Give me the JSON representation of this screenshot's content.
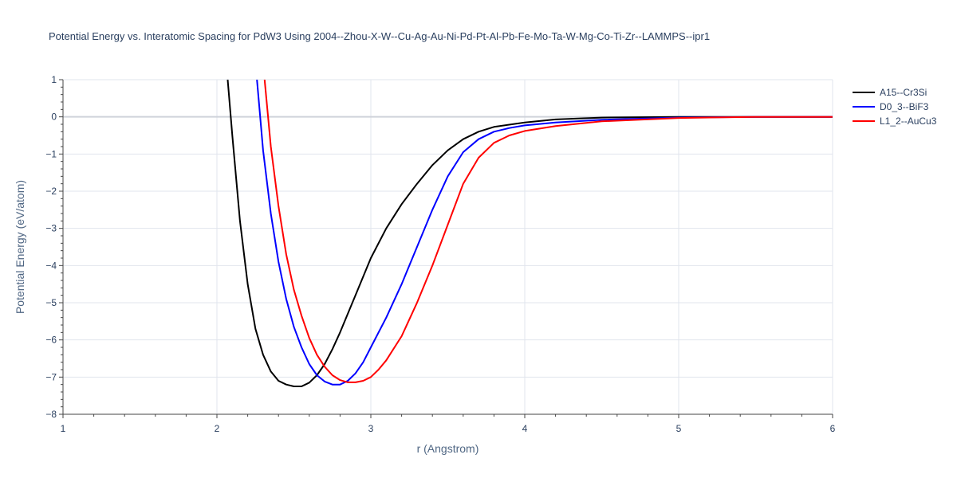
{
  "chart_data": {
    "type": "line",
    "title": "Potential Energy vs. Interatomic Spacing for PdW3 Using 2004--Zhou-X-W--Cu-Ag-Au-Ni-Pd-Pt-Al-Pb-Fe-Mo-Ta-W-Mg-Co-Ti-Zr--LAMMPS--ipr1",
    "xlabel": "r (Angstrom)",
    "ylabel": "Potential Energy (eV/atom)",
    "xlim": [
      1,
      6
    ],
    "ylim": [
      -8,
      1
    ],
    "xticks": [
      1,
      2,
      3,
      4,
      5,
      6
    ],
    "yticks": [
      1,
      0,
      -1,
      -2,
      -3,
      -4,
      -5,
      -6,
      -7,
      -8
    ],
    "xtick_labels": [
      "1",
      "2",
      "3",
      "4",
      "5",
      "6"
    ],
    "ytick_labels": [
      "1",
      "0",
      "−1",
      "−2",
      "−3",
      "−4",
      "−5",
      "−6",
      "−7",
      "−8"
    ],
    "grid": true,
    "legend_position": "top-right",
    "series": [
      {
        "name": "A15--Cr3Si",
        "color": "#000000",
        "x": [
          2.07,
          2.1,
          2.15,
          2.2,
          2.25,
          2.3,
          2.35,
          2.4,
          2.45,
          2.5,
          2.55,
          2.6,
          2.65,
          2.7,
          2.75,
          2.8,
          2.9,
          3.0,
          3.1,
          3.2,
          3.3,
          3.4,
          3.5,
          3.6,
          3.7,
          3.8,
          4.0,
          4.2,
          4.5,
          5.0,
          5.5,
          6.0
        ],
        "y": [
          1.0,
          -0.5,
          -2.8,
          -4.5,
          -5.7,
          -6.4,
          -6.85,
          -7.1,
          -7.2,
          -7.25,
          -7.25,
          -7.15,
          -6.95,
          -6.65,
          -6.25,
          -5.8,
          -4.8,
          -3.8,
          -3.0,
          -2.35,
          -1.8,
          -1.3,
          -0.9,
          -0.6,
          -0.4,
          -0.27,
          -0.15,
          -0.07,
          -0.02,
          0.0,
          0.0,
          0.0
        ]
      },
      {
        "name": "D0_3--BiF3",
        "color": "#0000ff",
        "x": [
          2.26,
          2.3,
          2.35,
          2.4,
          2.45,
          2.5,
          2.55,
          2.6,
          2.65,
          2.7,
          2.75,
          2.8,
          2.85,
          2.9,
          2.95,
          3.0,
          3.1,
          3.2,
          3.3,
          3.4,
          3.5,
          3.6,
          3.7,
          3.8,
          3.9,
          4.0,
          4.2,
          4.5,
          5.0,
          5.5,
          6.0
        ],
        "y": [
          1.0,
          -0.9,
          -2.6,
          -3.9,
          -4.9,
          -5.65,
          -6.2,
          -6.65,
          -6.95,
          -7.12,
          -7.2,
          -7.2,
          -7.1,
          -6.9,
          -6.6,
          -6.2,
          -5.4,
          -4.5,
          -3.5,
          -2.5,
          -1.6,
          -0.95,
          -0.6,
          -0.4,
          -0.3,
          -0.23,
          -0.15,
          -0.08,
          -0.02,
          0.0,
          0.0
        ]
      },
      {
        "name": "L1_2--AuCu3",
        "color": "#ff0000",
        "x": [
          2.31,
          2.35,
          2.4,
          2.45,
          2.5,
          2.55,
          2.6,
          2.65,
          2.7,
          2.75,
          2.8,
          2.85,
          2.9,
          2.95,
          3.0,
          3.05,
          3.1,
          3.2,
          3.3,
          3.4,
          3.5,
          3.6,
          3.7,
          3.8,
          3.9,
          4.0,
          4.2,
          4.5,
          5.0,
          5.5,
          6.0
        ],
        "y": [
          1.0,
          -0.8,
          -2.4,
          -3.7,
          -4.65,
          -5.35,
          -5.95,
          -6.4,
          -6.72,
          -6.95,
          -7.08,
          -7.14,
          -7.14,
          -7.1,
          -7.0,
          -6.8,
          -6.55,
          -5.9,
          -5.0,
          -4.0,
          -2.9,
          -1.8,
          -1.1,
          -0.7,
          -0.5,
          -0.38,
          -0.25,
          -0.12,
          -0.03,
          0.0,
          0.0
        ]
      }
    ]
  }
}
